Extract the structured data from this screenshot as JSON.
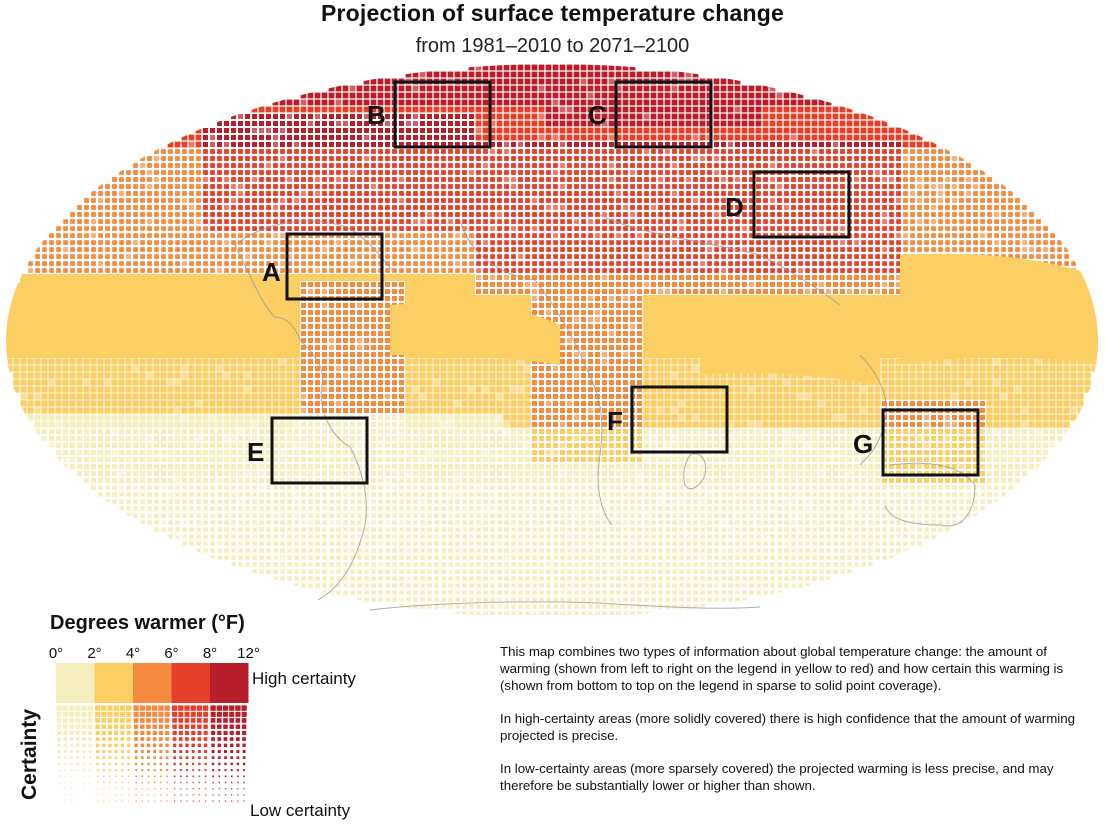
{
  "title": "Projection of surface temperature change",
  "subtitle": "from 1981–2010 to 2071–2100",
  "map_regions": [
    "A",
    "B",
    "C",
    "D",
    "E",
    "F",
    "G"
  ],
  "legend": {
    "heading": "Degrees warmer (°F)",
    "ticks": [
      "0°",
      "2°",
      "4°",
      "6°",
      "8°",
      "12°"
    ],
    "colors": [
      "#f5efbf",
      "#fbcf63",
      "#f48b3f",
      "#e6402a",
      "#b71f2b"
    ],
    "high_label": "High certainty",
    "low_label": "Low certainty",
    "axis_label": "Certainty"
  },
  "explanation": [
    "This map combines two types of information about global temperature change: the amount of warming (shown from left to right on the legend in yellow to red) and how certain this warming is (shown from bottom to top on the legend in sparse to solid point coverage).",
    "In high-certainty areas (more solidly covered) there is high confidence that the amount of warming projected is precise.",
    "In low-certainty areas (more sparsely covered) the projected warming is less precise, and may therefore be substantially lower or higher than shown."
  ]
}
